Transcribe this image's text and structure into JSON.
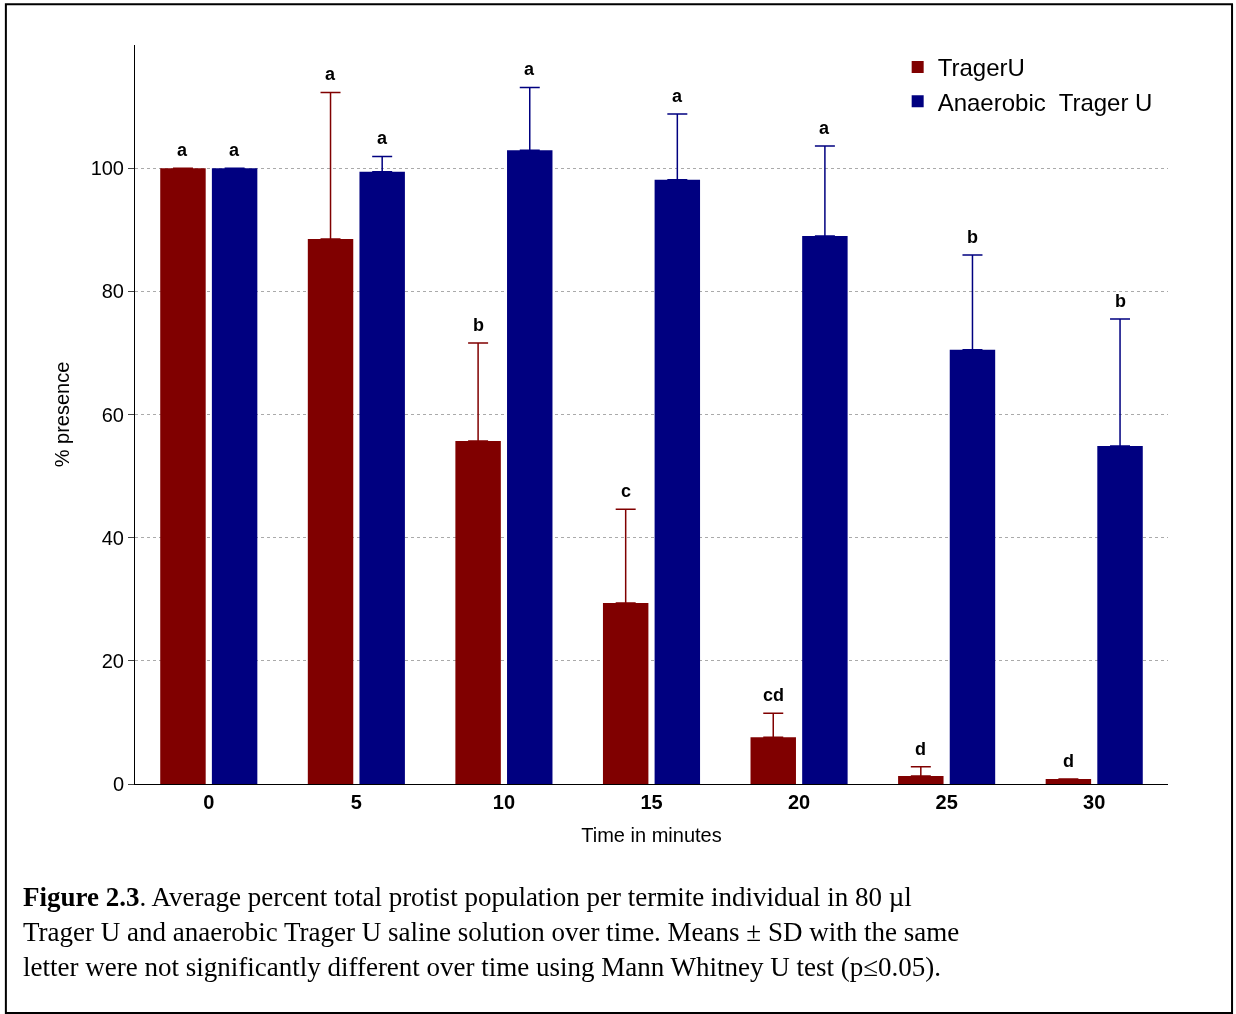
{
  "chart_data": {
    "type": "bar",
    "xlabel": "Time in minutes",
    "ylabel": "% presence",
    "categories": [
      "0",
      "5",
      "10",
      "15",
      "20",
      "25",
      "30"
    ],
    "series": [
      {
        "name": "TragerU",
        "color": "#800000",
        "values": [
          100,
          88.5,
          55.7,
          29.4,
          7.6,
          1.3,
          0.8
        ],
        "errors": [
          null,
          [
            88.5,
            112.3
          ],
          [
            55.7,
            71.6
          ],
          [
            29.4,
            44.6
          ],
          [
            7.6,
            11.5
          ],
          [
            1.3,
            2.8
          ],
          null
        ]
      },
      {
        "name": "Anaerobic  Trager U",
        "color": "#000080",
        "values": [
          100,
          99.4,
          102.9,
          98.1,
          89.0,
          70.5,
          54.9
        ],
        "errors": [
          null,
          [
            99.4,
            101.9
          ],
          [
            102.9,
            113.1
          ],
          [
            98.1,
            108.8
          ],
          [
            89.0,
            103.6
          ],
          [
            70.5,
            85.9
          ],
          [
            54.9,
            75.5
          ]
        ]
      }
    ],
    "ylim": [
      0,
      120
    ],
    "yticks": [
      0,
      20,
      40,
      60,
      80,
      100
    ],
    "grid": "y",
    "legend": "top right",
    "annotations": [
      "a",
      "a",
      "a",
      "a",
      "b",
      "a",
      "c",
      "a",
      "cd",
      "a",
      "d",
      "b",
      "d",
      "b",
      "Figure 2.3. Average percent total protist population per termite individual in 80 µl Trager U and anaerobic Trager U saline solution over time. Means ± SD with the same letter were not significantly different over time using Mann Whitney U test (p≤0.05)."
    ]
  }
}
